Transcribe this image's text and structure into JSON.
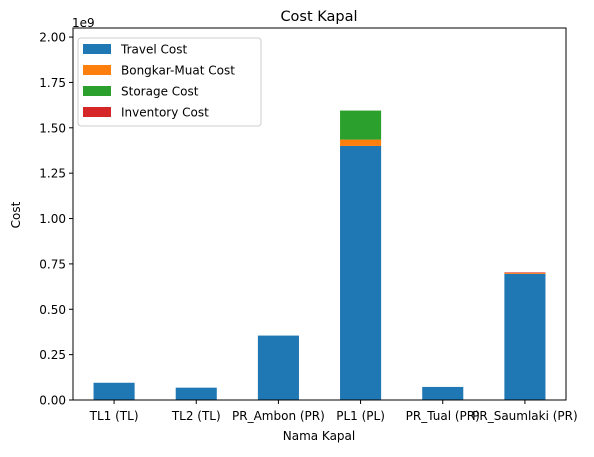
{
  "chart_data": {
    "type": "bar",
    "stacked": true,
    "title": "Cost Kapal",
    "xlabel": "Nama Kapal",
    "ylabel": "Cost",
    "y_offset_label": "1e9",
    "y_scale": 1000000000,
    "ylim": [
      0,
      2.05
    ],
    "yticks": [
      "0.00",
      "0.25",
      "0.50",
      "0.75",
      "1.00",
      "1.25",
      "1.50",
      "1.75",
      "2.00"
    ],
    "grid": false,
    "legend_position": "top-left",
    "categories": [
      "TL1 (TL)",
      "TL2 (TL)",
      "PR_Ambon (PR)",
      "PL1 (PL)",
      "PR_Tual (PR)",
      "PR_Saumlaki (PR)"
    ],
    "series": [
      {
        "name": "Travel Cost",
        "color": "#1f77b4",
        "values": [
          0.095,
          0.068,
          0.355,
          1.4,
          0.072,
          0.695
        ]
      },
      {
        "name": "Bongkar-Muat Cost",
        "color": "#ff7f0e",
        "values": [
          0.0,
          0.0,
          0.0,
          0.035,
          0.0,
          0.006
        ]
      },
      {
        "name": "Storage Cost",
        "color": "#2ca02c",
        "values": [
          0.0,
          0.0,
          0.0,
          0.16,
          0.0,
          0.0
        ]
      },
      {
        "name": "Inventory Cost",
        "color": "#d62728",
        "values": [
          0.0,
          0.0,
          0.0,
          0.0,
          0.0,
          0.002
        ]
      }
    ]
  }
}
